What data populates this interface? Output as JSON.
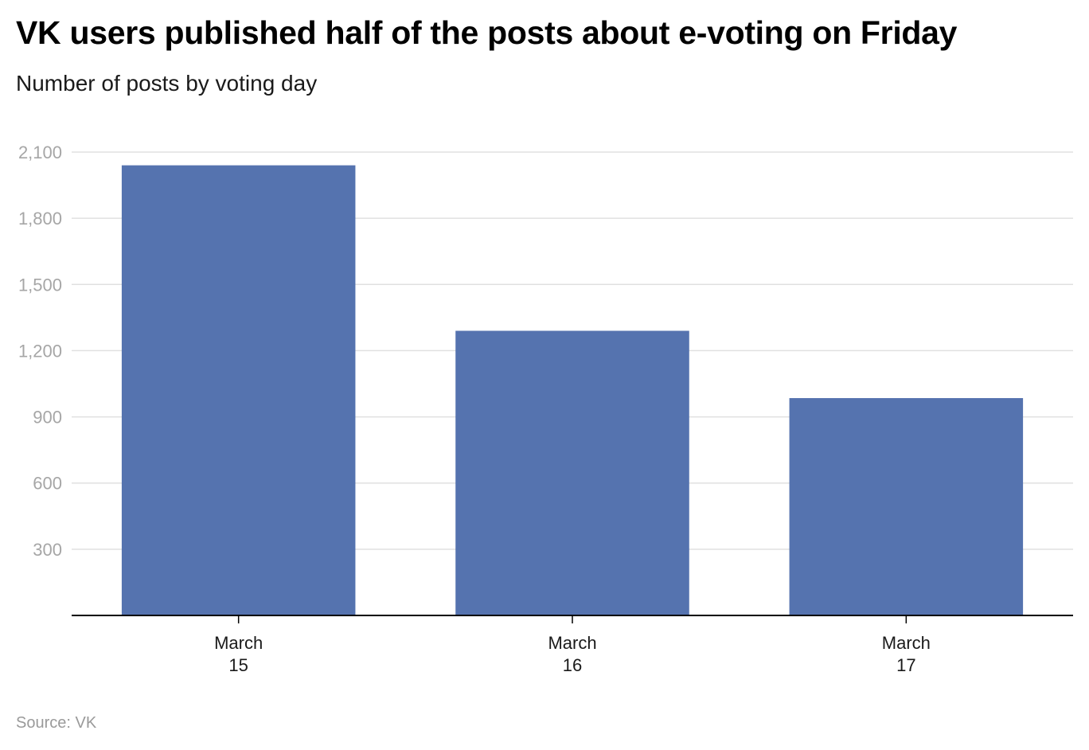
{
  "header": {
    "title": "VK users published half of the posts about e-voting on Friday",
    "subtitle": "Number of posts by voting day"
  },
  "footer": {
    "source": "Source: VK"
  },
  "colors": {
    "bar": "#5573af",
    "grid": "#e0e0e0",
    "axis": "#000000",
    "tick_text": "#a6a6a6"
  },
  "chart_data": {
    "type": "bar",
    "title": "VK users published half of the posts about e-voting on Friday",
    "subtitle": "Number of posts by voting day",
    "categories": [
      [
        "March",
        "15"
      ],
      [
        "March",
        "16"
      ],
      [
        "March",
        "17"
      ]
    ],
    "values": [
      2040,
      1290,
      985
    ],
    "ylim": [
      0,
      2100
    ],
    "yticks": [
      300,
      600,
      900,
      1200,
      1500,
      1800,
      2100
    ],
    "ytick_labels": [
      "300",
      "600",
      "900",
      "1,200",
      "1,500",
      "1,800",
      "2,100"
    ],
    "xlabel": "",
    "ylabel": "",
    "grid": true
  }
}
